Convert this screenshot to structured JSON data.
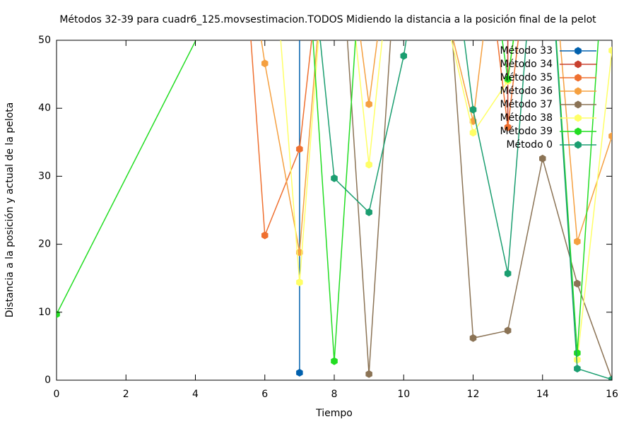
{
  "chart_data": {
    "type": "line",
    "title": "Métodos 32-39 para cuadr6_125.movsestimacion.TODOS Midiendo la distancia a la posición final de la pelot",
    "x_label": "Tiempo",
    "y_label": "Distancia a la posición y actual de la pelota",
    "xlim": [
      0,
      16
    ],
    "ylim": [
      0,
      50
    ],
    "xticks": [
      0,
      2,
      4,
      6,
      8,
      10,
      12,
      14,
      16
    ],
    "yticks": [
      0,
      10,
      20,
      30,
      40,
      50
    ],
    "legend": "top-right",
    "series": [
      {
        "name": "Método 33",
        "color": "#0060ad",
        "x": [
          7,
          7
        ],
        "values": [
          1.1,
          80
        ]
      },
      {
        "name": "Método 34",
        "color": "#c8402e",
        "x": [
          13,
          13
        ],
        "values": [
          37.2,
          80
        ]
      },
      {
        "name": "Método 35",
        "color": "#ef7030",
        "x": [
          5,
          6,
          7,
          8,
          12,
          13,
          14
        ],
        "values": [
          93,
          21.3,
          34,
          80,
          80,
          37.2,
          80
        ]
      },
      {
        "name": "Método 36",
        "color": "#f5a040",
        "x": [
          5,
          6,
          7,
          8,
          9,
          10,
          12,
          13,
          14,
          15,
          16
        ],
        "values": [
          80,
          46.6,
          18.8,
          80,
          40.6,
          80,
          38.1,
          80,
          80,
          20.4,
          35.9
        ]
      },
      {
        "name": "Método 37",
        "color": "#8b7355",
        "x": [
          8,
          9,
          10,
          11,
          12,
          13,
          14,
          15,
          16
        ],
        "values": [
          80,
          0.9,
          80,
          80,
          6.2,
          7.3,
          32.6,
          14.2,
          0.1
        ]
      },
      {
        "name": "Método 38",
        "color": "#ffff66",
        "x": [
          6,
          7,
          8,
          9,
          10,
          12,
          13,
          14,
          15,
          16
        ],
        "values": [
          80,
          14.4,
          80,
          31.7,
          80,
          36.4,
          44,
          80,
          3,
          48.5
        ]
      },
      {
        "name": "Método 39",
        "color": "#22dd22",
        "x": [
          0,
          7,
          8,
          9,
          12,
          13,
          14,
          15,
          16
        ],
        "values": [
          9.7,
          80,
          2.8,
          80,
          80,
          44.3,
          80,
          4.0,
          80
        ]
      },
      {
        "name": "Método 0",
        "color": "#1a9e70",
        "x": [
          7,
          8,
          9,
          10,
          11,
          12,
          13,
          14,
          15,
          16
        ],
        "values": [
          80,
          29.7,
          24.7,
          47.7,
          80,
          39.8,
          15.7,
          80,
          1.7,
          0.1
        ]
      }
    ]
  }
}
